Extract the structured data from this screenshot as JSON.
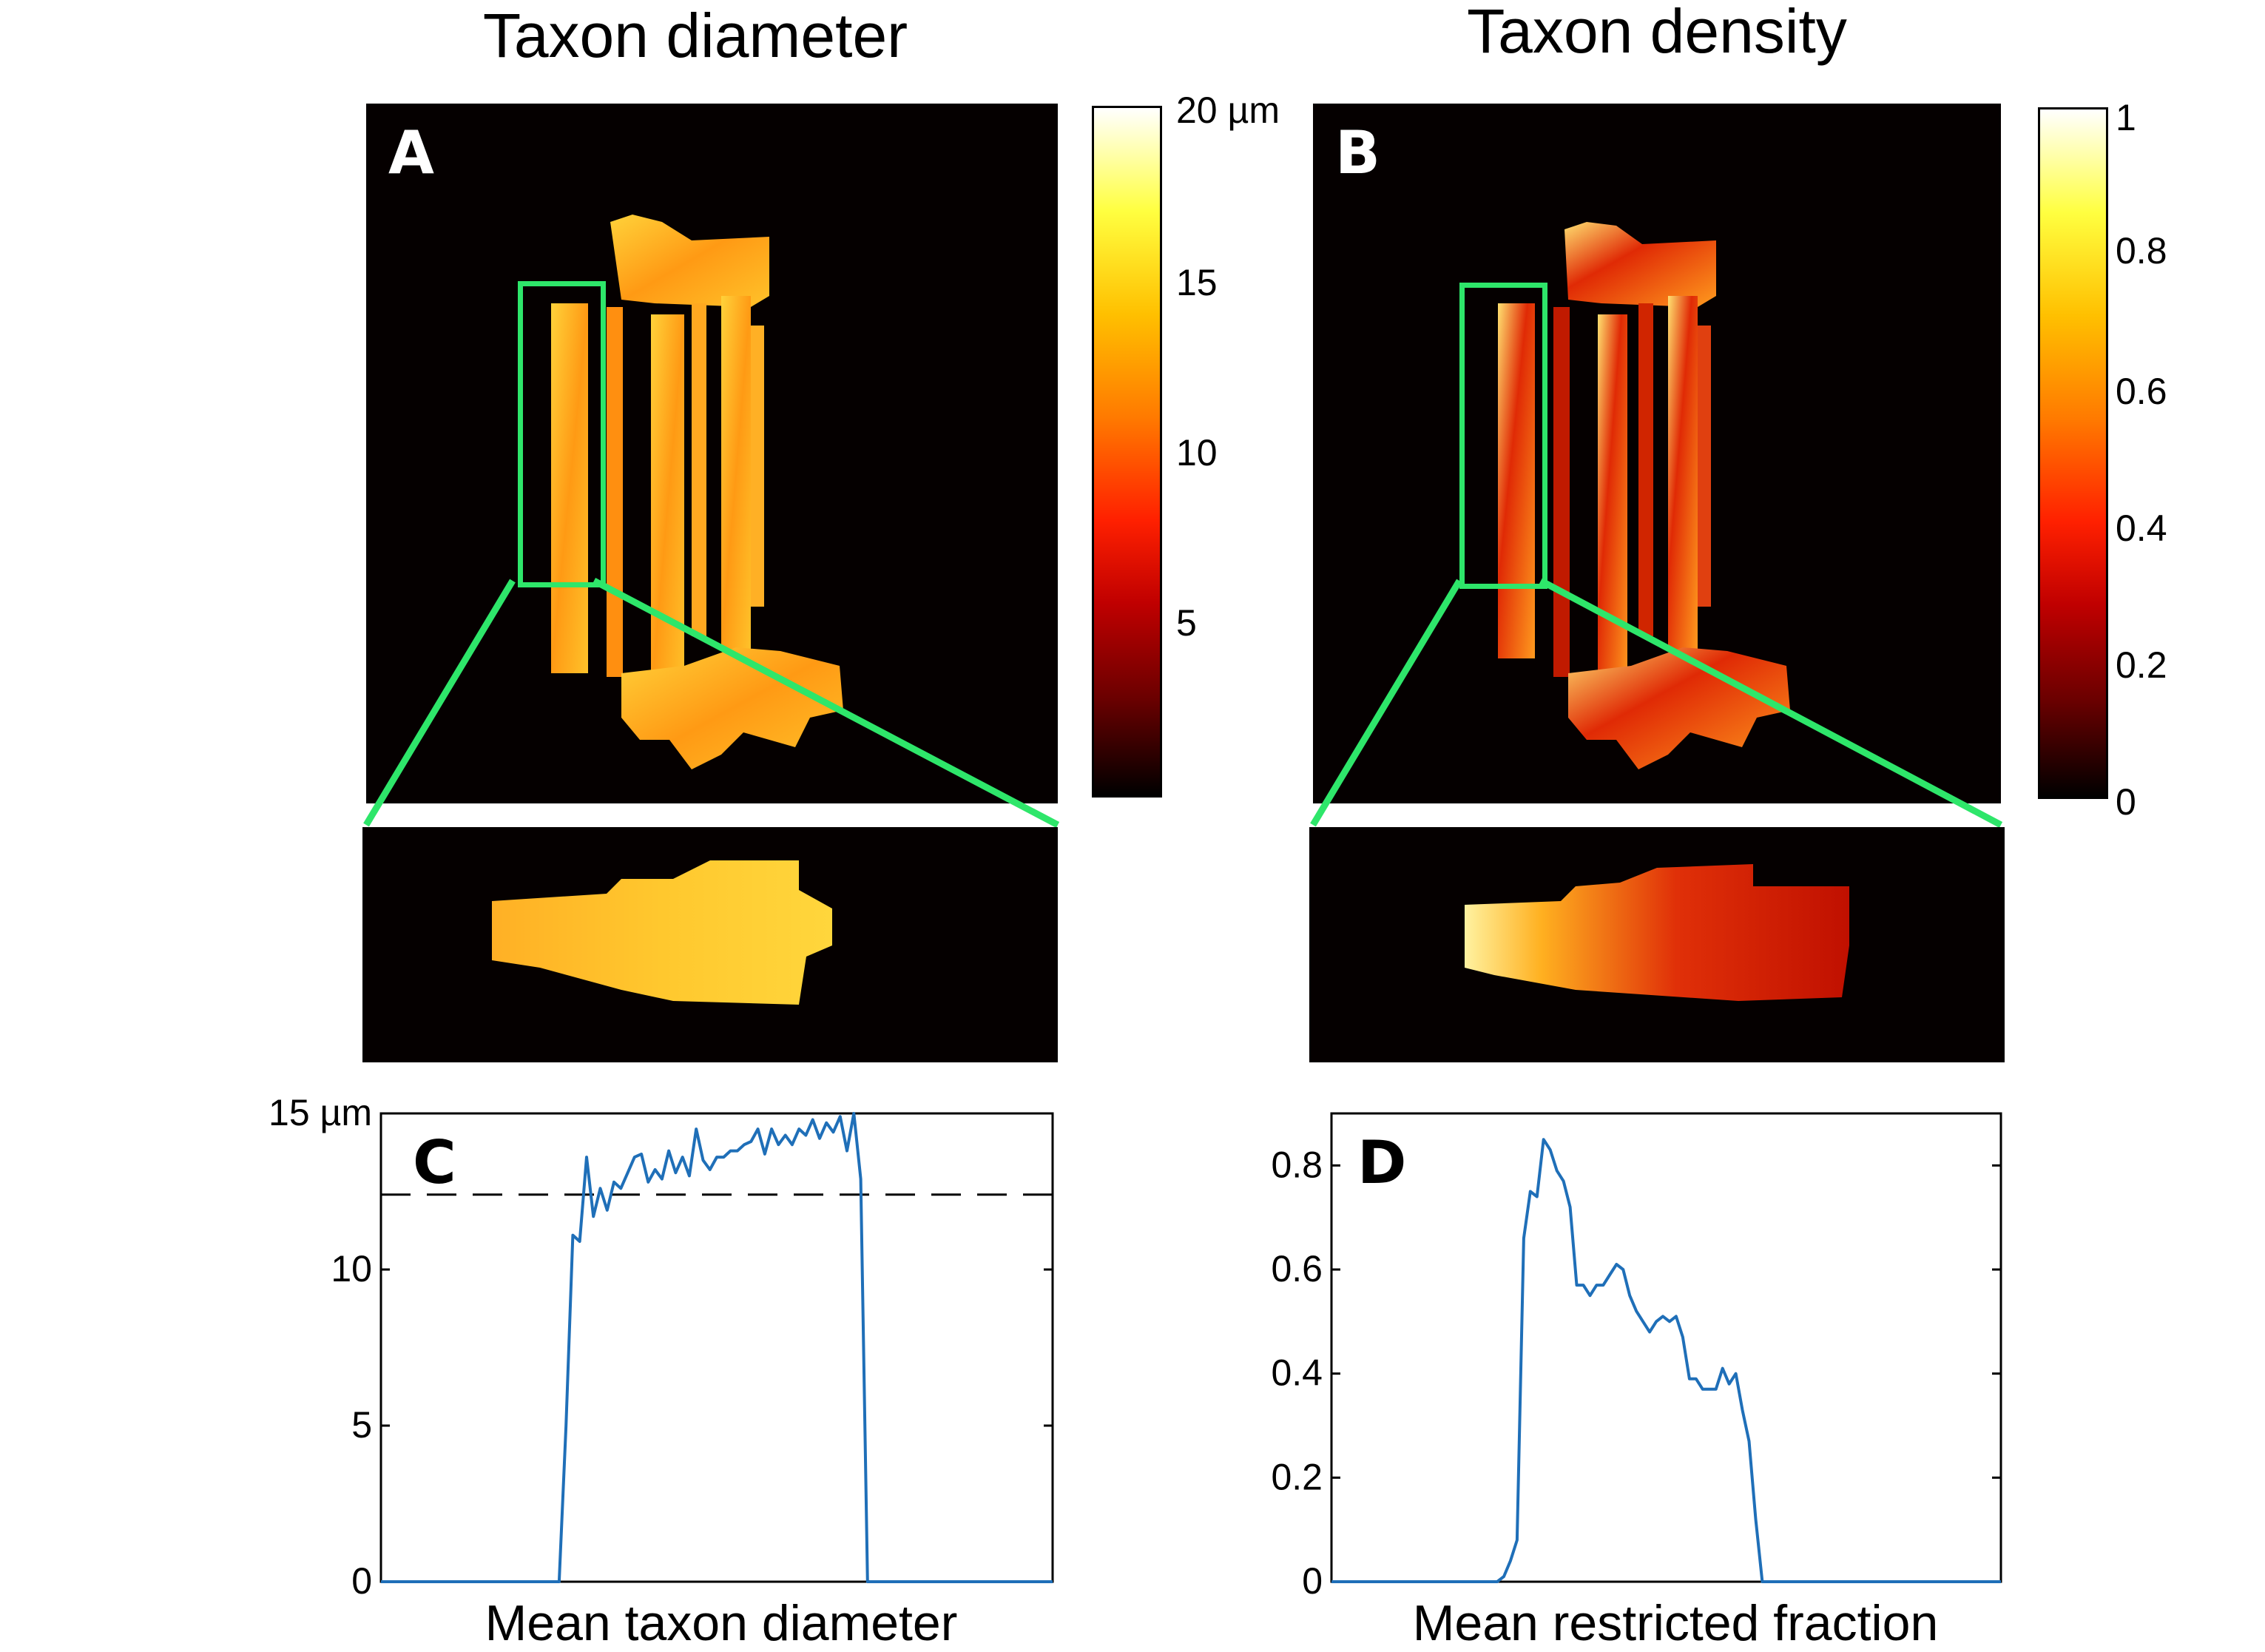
{
  "titles": {
    "left": "Taxon diameter",
    "right": "Taxon density"
  },
  "panels": {
    "a": "A",
    "b": "B",
    "c": "C",
    "d": "D"
  },
  "colorbar_a": {
    "labels": [
      "20 µm",
      "15",
      "10",
      "5"
    ],
    "values": [
      20,
      15,
      10,
      5
    ],
    "range": [
      0,
      20
    ]
  },
  "colorbar_b": {
    "labels": [
      "1",
      "0.8",
      "0.6",
      "0.4",
      "0.2",
      "0"
    ],
    "values": [
      1,
      0.8,
      0.6,
      0.4,
      0.2,
      0
    ],
    "range": [
      0,
      1
    ]
  },
  "colors": {
    "line": "#1f6fb8",
    "highlight": "#2ee66a",
    "colormap": "hot"
  },
  "chart_data": [
    {
      "type": "line",
      "panel": "C",
      "xlabel": "Mean taxon diameter",
      "ylabel": "",
      "ylim": [
        0,
        15
      ],
      "yticks": [
        0,
        5,
        10,
        15
      ],
      "ytick_labels": [
        "0",
        "5",
        "10",
        "15 µm"
      ],
      "reference_line": 12.4,
      "series": [
        {
          "values": [
            0,
            0,
            0,
            0,
            0,
            0,
            0,
            0,
            0,
            0,
            0,
            0,
            0,
            0,
            0,
            0,
            0,
            0,
            0,
            0,
            0,
            0,
            0,
            0,
            0,
            0,
            0,
            5.0,
            11.1,
            10.9,
            13.6,
            11.7,
            12.6,
            11.9,
            12.8,
            12.6,
            13.1,
            13.6,
            13.7,
            12.8,
            13.2,
            12.9,
            13.8,
            13.1,
            13.6,
            13.0,
            14.5,
            13.5,
            13.2,
            13.6,
            13.6,
            13.8,
            13.8,
            14.0,
            14.1,
            14.5,
            13.7,
            14.5,
            14.0,
            14.3,
            14.0,
            14.5,
            14.3,
            14.8,
            14.2,
            14.7,
            14.4,
            14.9,
            13.8,
            15.0,
            12.9,
            0,
            0,
            0,
            0,
            0,
            0,
            0,
            0,
            0,
            0,
            0,
            0,
            0,
            0,
            0,
            0,
            0,
            0,
            0,
            0,
            0,
            0,
            0,
            0,
            0,
            0,
            0,
            0
          ]
        }
      ]
    },
    {
      "type": "line",
      "panel": "D",
      "xlabel": "Mean restricted fraction",
      "ylabel": "",
      "ylim": [
        0,
        0.9
      ],
      "yticks": [
        0,
        0.2,
        0.4,
        0.6,
        0.8
      ],
      "ytick_labels": [
        "0",
        "0.2",
        "0.4",
        "0.6",
        "0.8"
      ],
      "series": [
        {
          "values": [
            0,
            0,
            0,
            0,
            0,
            0,
            0,
            0,
            0,
            0,
            0,
            0,
            0,
            0,
            0,
            0,
            0,
            0,
            0,
            0,
            0,
            0,
            0,
            0,
            0,
            0,
            0.01,
            0.04,
            0.08,
            0.66,
            0.75,
            0.74,
            0.85,
            0.83,
            0.79,
            0.77,
            0.72,
            0.57,
            0.57,
            0.55,
            0.57,
            0.57,
            0.59,
            0.61,
            0.6,
            0.55,
            0.52,
            0.5,
            0.48,
            0.5,
            0.51,
            0.5,
            0.51,
            0.47,
            0.39,
            0.39,
            0.37,
            0.37,
            0.37,
            0.41,
            0.38,
            0.4,
            0.33,
            0.27,
            0.12,
            0,
            0,
            0,
            0,
            0,
            0,
            0,
            0,
            0,
            0,
            0,
            0,
            0,
            0,
            0,
            0,
            0,
            0,
            0,
            0,
            0,
            0,
            0,
            0,
            0,
            0,
            0,
            0,
            0,
            0,
            0,
            0,
            0,
            0,
            0,
            0,
            0
          ]
        }
      ]
    }
  ]
}
